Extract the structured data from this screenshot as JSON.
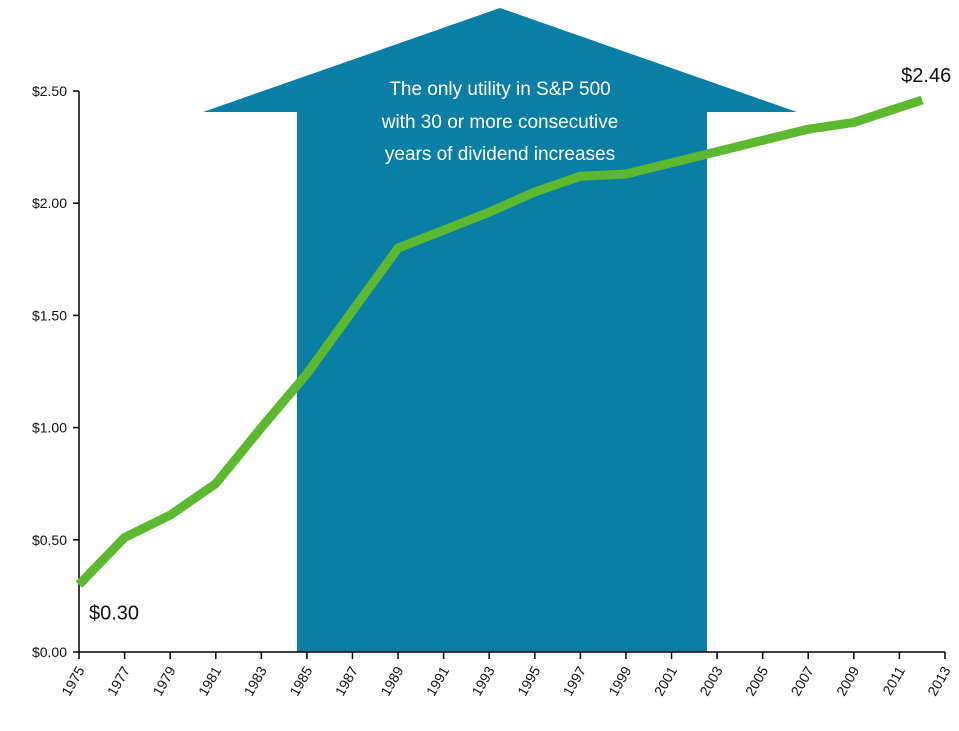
{
  "chart_data": {
    "type": "line",
    "annotation": [
      "The only utility in S&P 500",
      "with 30 or more consecutive",
      "years of dividend increases"
    ],
    "x": [
      1975,
      1977,
      1979,
      1981,
      1983,
      1985,
      1987,
      1989,
      1991,
      1993,
      1995,
      1997,
      1999,
      2001,
      2003,
      2005,
      2007,
      2009,
      2012
    ],
    "series": [
      {
        "color": "#5cb82f",
        "values": [
          0.3,
          0.51,
          0.61,
          0.75,
          1.0,
          1.24,
          1.52,
          1.8,
          1.88,
          1.96,
          2.05,
          2.12,
          2.13,
          2.18,
          2.23,
          2.28,
          2.33,
          2.36,
          2.46
        ],
        "value_labels": [
          "$0.30",
          null,
          null,
          null,
          null,
          null,
          null,
          null,
          null,
          null,
          null,
          null,
          null,
          null,
          null,
          null,
          null,
          null,
          "$2.46"
        ]
      }
    ],
    "xlim": [
      1975,
      2013
    ],
    "xticks": [
      1975,
      1977,
      1979,
      1981,
      1983,
      1985,
      1987,
      1989,
      1991,
      1993,
      1995,
      1997,
      1999,
      2001,
      2003,
      2005,
      2007,
      2009,
      2011,
      2013
    ],
    "ylim": [
      0,
      2.5
    ],
    "yticks": [
      {
        "value": 0,
        "label": "$0.00"
      },
      {
        "value": 0.5,
        "label": "$0.50"
      },
      {
        "value": 1.0,
        "label": "$1.00"
      },
      {
        "value": 1.5,
        "label": "$1.50"
      },
      {
        "value": 2.0,
        "label": "$2.00"
      },
      {
        "value": 2.5,
        "label": "$2.50"
      }
    ]
  }
}
